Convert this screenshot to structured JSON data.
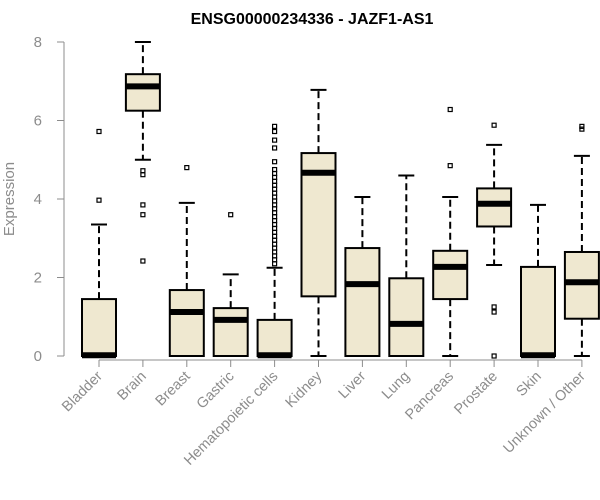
{
  "chart_data": {
    "type": "boxplot",
    "title": "ENSG00000234336 - JAZF1-AS1",
    "xlabel": "",
    "ylabel": "Expression",
    "ylim": [
      0,
      8
    ],
    "yticks": [
      0,
      2,
      4,
      6,
      8
    ],
    "grid": false,
    "legend": "none",
    "box_color": "#efe8d0",
    "categories": [
      "Bladder",
      "Brain",
      "Breast",
      "Gastric",
      "Hematopoietic cells",
      "Kidney",
      "Liver",
      "Lung",
      "Pancreas",
      "Prostate",
      "Skin",
      "Unknown / Other"
    ],
    "boxes": [
      {
        "label": "Bladder",
        "min": 0,
        "q1": 0,
        "median": 0.02,
        "q3": 1.45,
        "max": 3.35,
        "outliers": [
          3.97,
          5.72
        ]
      },
      {
        "label": "Brain",
        "min": 5.0,
        "q1": 6.25,
        "median": 6.87,
        "q3": 7.18,
        "max": 8.0,
        "outliers": [
          2.42,
          3.6,
          3.85,
          4.62,
          4.72
        ]
      },
      {
        "label": "Breast",
        "min": 0,
        "q1": 0,
        "median": 1.12,
        "q3": 1.68,
        "max": 3.9,
        "outliers": [
          4.8
        ]
      },
      {
        "label": "Gastric",
        "min": 0,
        "q1": 0,
        "median": 0.92,
        "q3": 1.22,
        "max": 2.08,
        "outliers": [
          3.6
        ]
      },
      {
        "label": "Hematopoietic cells",
        "min": 0,
        "q1": 0,
        "median": 0.02,
        "q3": 0.92,
        "max": 2.25,
        "outliers": [
          2.35,
          2.45,
          2.55,
          2.65,
          2.75,
          2.85,
          2.95,
          3.05,
          3.15,
          3.25,
          3.35,
          3.45,
          3.55,
          3.65,
          3.75,
          3.85,
          3.95,
          4.05,
          4.15,
          4.25,
          4.35,
          4.45,
          4.55,
          4.65,
          4.75,
          4.95,
          5.3,
          5.5,
          5.72,
          5.85
        ]
      },
      {
        "label": "Kidney",
        "min": 0,
        "q1": 1.52,
        "median": 4.67,
        "q3": 5.17,
        "max": 6.78,
        "outliers": []
      },
      {
        "label": "Liver",
        "min": 0,
        "q1": 0,
        "median": 1.83,
        "q3": 2.75,
        "max": 4.05,
        "outliers": []
      },
      {
        "label": "Lung",
        "min": 0,
        "q1": 0,
        "median": 0.82,
        "q3": 1.98,
        "max": 4.6,
        "outliers": []
      },
      {
        "label": "Pancreas",
        "min": 0,
        "q1": 1.45,
        "median": 2.27,
        "q3": 2.68,
        "max": 4.05,
        "outliers": [
          4.85,
          6.28
        ]
      },
      {
        "label": "Prostate",
        "min": 2.32,
        "q1": 3.3,
        "median": 3.88,
        "q3": 4.27,
        "max": 5.38,
        "outliers": [
          0.0,
          1.12,
          1.25,
          5.88
        ]
      },
      {
        "label": "Skin",
        "min": 0,
        "q1": 0,
        "median": 0.02,
        "q3": 2.27,
        "max": 3.85,
        "outliers": []
      },
      {
        "label": "Unknown / Other",
        "min": 0,
        "q1": 0.95,
        "median": 1.88,
        "q3": 2.65,
        "max": 5.1,
        "outliers": [
          5.78,
          5.85
        ]
      }
    ]
  }
}
